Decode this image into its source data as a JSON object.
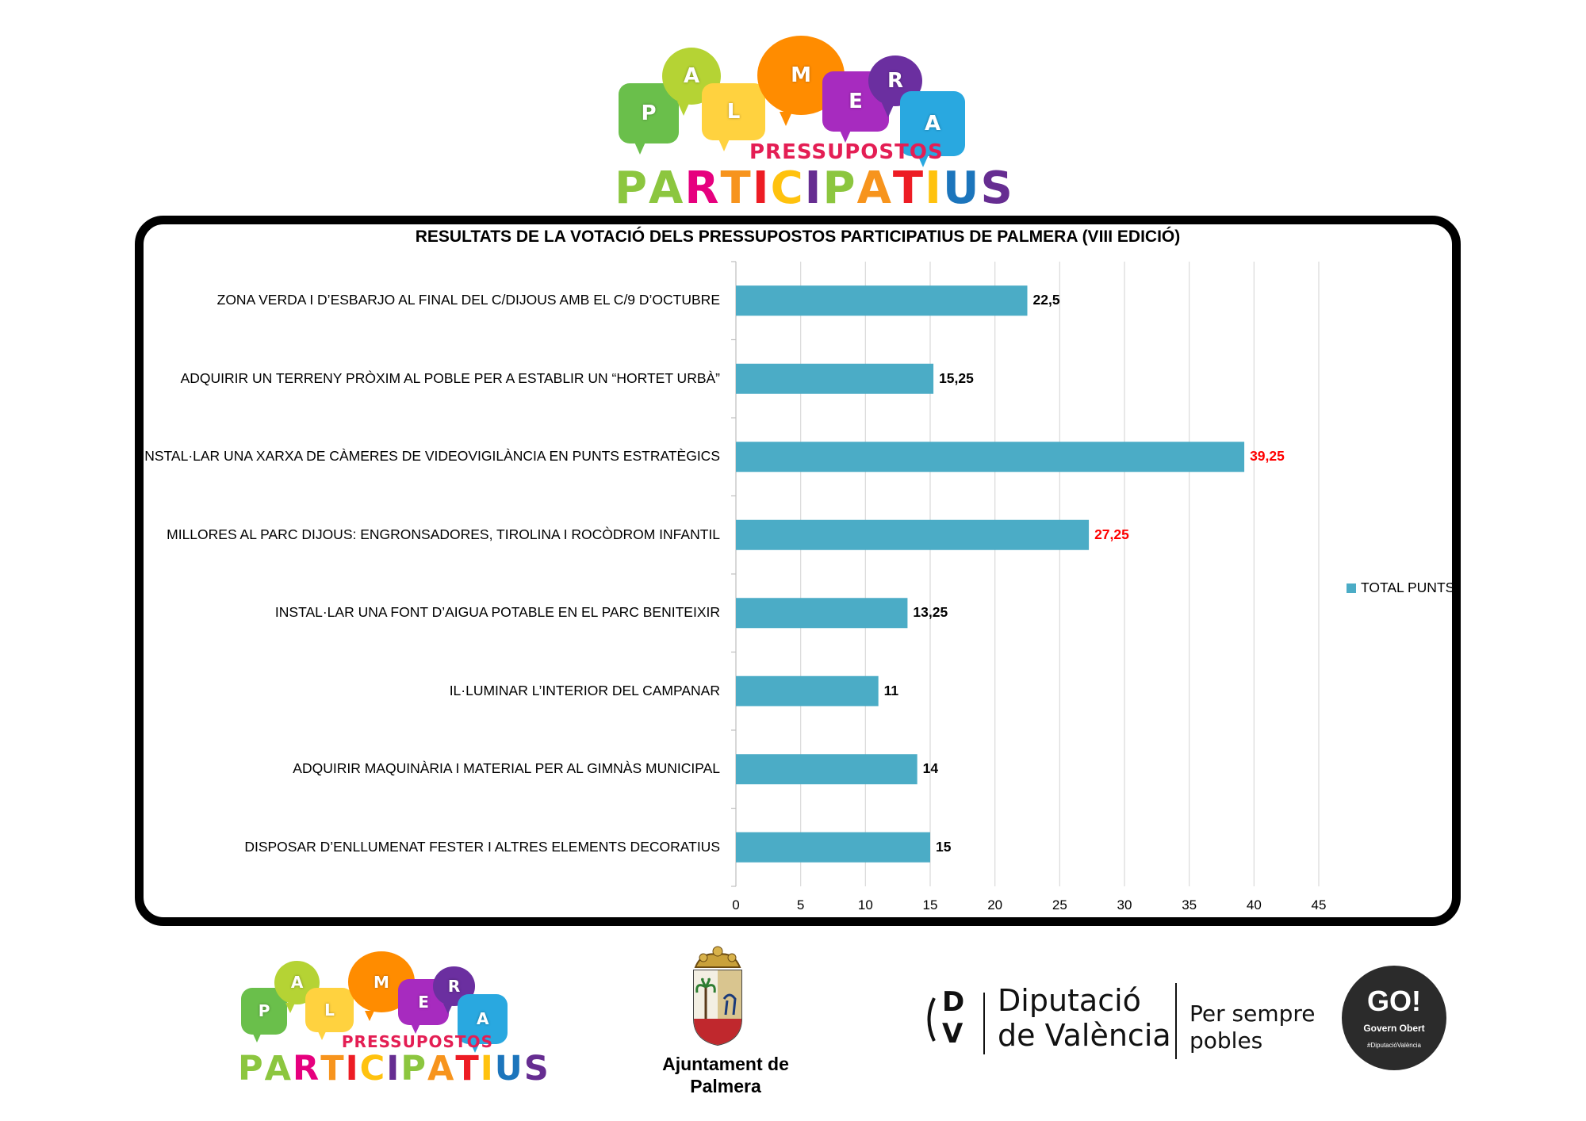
{
  "branding": {
    "logo_letters": [
      "P",
      "A",
      "L",
      "M",
      "E",
      "R",
      "A"
    ],
    "logo_subtitle": "PRESSUPOSTOS",
    "logo_title": "PARTICIPATIUS",
    "logo_title_colors": [
      "#8cc63f",
      "#8cc63f",
      "#e6007e",
      "#f7941d",
      "#ed1c24",
      "#ffc20e",
      "#662d91",
      "#8cc63f",
      "#f7941d",
      "#ed1c24",
      "#ffc20e",
      "#1c75bc",
      "#662d91"
    ],
    "bubble_colors": [
      "#6abf4b",
      "#b5d334",
      "#ffd23f",
      "#ff8c00",
      "#a72bbf",
      "#6b2fa0",
      "#29a8e0"
    ]
  },
  "chart_data": {
    "type": "bar",
    "orientation": "horizontal",
    "title": "RESULTATS DE LA VOTACIÓ DELS PRESSUPOSTOS PARTICIPATIUS DE PALMERA (VIII EDICIÓ)",
    "categories": [
      "ZONA VERDA I D’ESBARJO AL FINAL DEL C/DIJOUS AMB EL C/9 D’OCTUBRE",
      "ADQUIRIR UN TERRENY PRÒXIM AL POBLE PER A ESTABLIR UN “HORTET URBÀ”",
      "INSTAL·LAR UNA XARXA DE CÀMERES DE VIDEOVIGILÀNCIA EN PUNTS ESTRATÈGICS",
      "MILLORES AL PARC DIJOUS: ENGRONSADORES, TIROLINA I ROCÒDROM INFANTIL",
      "INSTAL·LAR UNA FONT D’AIGUA POTABLE EN EL PARC BENITEIXIR",
      "IL·LUMINAR L’INTERIOR DEL CAMPANAR",
      "ADQUIRIR MAQUINÀRIA I MATERIAL PER AL GIMNÀS MUNICIPAL",
      "DISPOSAR D’ENLLUMENAT FESTER I ALTRES ELEMENTS DECORATIUS"
    ],
    "series": [
      {
        "name": "TOTAL PUNTS",
        "values": [
          22.5,
          15.25,
          39.25,
          27.25,
          13.25,
          11,
          14,
          15
        ],
        "labels": [
          "22,5",
          "15,25",
          "39,25",
          "27,25",
          "13,25",
          "11",
          "14",
          "15"
        ],
        "label_colors": [
          "#000000",
          "#000000",
          "#ff0000",
          "#ff0000",
          "#000000",
          "#000000",
          "#000000",
          "#000000"
        ],
        "color": "#4bacc6"
      }
    ],
    "xlim": [
      0,
      45
    ],
    "xticks": [
      0,
      5,
      10,
      15,
      20,
      25,
      30,
      35,
      40,
      45
    ],
    "grid": true,
    "legend": "right"
  },
  "footer": {
    "ajuntament_line1": "Ajuntament de",
    "ajuntament_line2": "Palmera",
    "dv_monogram_top": "D",
    "dv_monogram_bottom": "V",
    "diputacio_line1": "Diputació",
    "diputacio_line2": "de València",
    "slogan_line1": "Per sempre",
    "slogan_line2": "pobles",
    "go_title": "GO!",
    "go_subtitle": "Govern Obert",
    "go_hashtag": "#DiputacióValència"
  }
}
